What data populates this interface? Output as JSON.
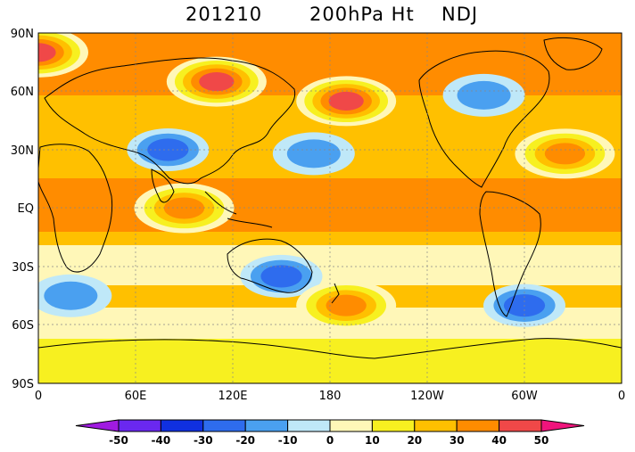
{
  "title": {
    "date": "201210",
    "field": "200hPa Ht",
    "season": "NDJ"
  },
  "map": {
    "lat_labels": [
      "90N",
      "60N",
      "30N",
      "EQ",
      "30S",
      "60S",
      "90S"
    ],
    "lon_labels": [
      "0",
      "60E",
      "120E",
      "180",
      "120W",
      "60W",
      "0"
    ]
  },
  "colorbar": {
    "levels": [
      "-50",
      "-40",
      "-30",
      "-20",
      "-10",
      "0",
      "10",
      "20",
      "30",
      "40",
      "50"
    ],
    "colors": [
      "#a01be0",
      "#6a28f0",
      "#1030e0",
      "#2e6cee",
      "#4aa0f0",
      "#bfe8f8",
      "#fff7b8",
      "#f7f020",
      "#ffc000",
      "#ff8c00",
      "#f04848",
      "#f0147c"
    ]
  },
  "anomalies": [
    {
      "name": "central-asia-low",
      "lon": 80,
      "lat": 30,
      "value": -30
    },
    {
      "name": "australia-low",
      "lon": 150,
      "lat": -35,
      "value": -30
    },
    {
      "name": "south-america-low",
      "lon": -60,
      "lat": -50,
      "value": -30
    },
    {
      "name": "canada-low",
      "lon": -85,
      "lat": 58,
      "value": -20
    },
    {
      "name": "pacific-low",
      "lon": 170,
      "lat": 28,
      "value": -20
    },
    {
      "name": "south-africa-low",
      "lon": 20,
      "lat": -45,
      "value": -20
    },
    {
      "name": "arctic-high",
      "lon": 0,
      "lat": 80,
      "value": 50
    },
    {
      "name": "north-pacific-high",
      "lon": -170,
      "lat": 55,
      "value": 50
    },
    {
      "name": "siberia-high",
      "lon": 110,
      "lat": 65,
      "value": 50
    },
    {
      "name": "indian-ocean-high",
      "lon": 90,
      "lat": 0,
      "value": 40
    },
    {
      "name": "south-pacific-high",
      "lon": -170,
      "lat": -50,
      "value": 40
    },
    {
      "name": "atlantic-high",
      "lon": -35,
      "lat": 28,
      "value": 40
    }
  ]
}
